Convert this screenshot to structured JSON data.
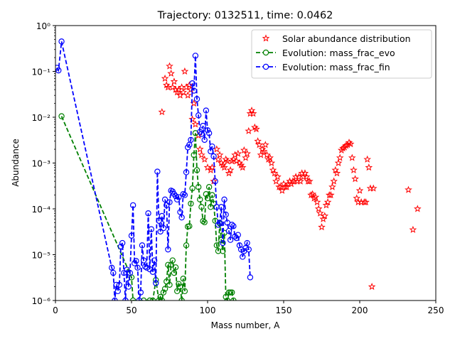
{
  "chart_data": {
    "type": "scatter",
    "title": "Trajectory: 0132511, time: 0.0462",
    "xlabel": "Mass number, A",
    "ylabel": "Abundance",
    "xlim": [
      0,
      250
    ],
    "ylim": [
      1e-06,
      1
    ],
    "yscale": "log",
    "grid": false,
    "legend": "top-right",
    "xticks": [
      0,
      50,
      100,
      150,
      200,
      250
    ],
    "xtick_labels": [
      "0",
      "50",
      "100",
      "150",
      "200",
      "250"
    ],
    "yticks": [
      1e-06,
      1e-05,
      0.0001,
      0.001,
      0.01,
      0.1,
      1
    ],
    "ytick_labels": [
      "10⁻⁶",
      "10⁻⁵",
      "10⁻⁴",
      "10⁻³",
      "10⁻²",
      "10⁻¹",
      "10⁰"
    ],
    "series": [
      {
        "name": "Solar abundance distribution",
        "color": "#ff0000",
        "marker": "star",
        "line": "none",
        "points": [
          [
            70,
            0.013
          ],
          [
            72,
            0.07
          ],
          [
            73,
            0.05
          ],
          [
            74,
            0.045
          ],
          [
            75,
            0.13
          ],
          [
            76,
            0.09
          ],
          [
            77,
            0.045
          ],
          [
            78,
            0.06
          ],
          [
            79,
            0.04
          ],
          [
            80,
            0.035
          ],
          [
            81,
            0.04
          ],
          [
            82,
            0.03
          ],
          [
            83,
            0.045
          ],
          [
            84,
            0.035
          ],
          [
            85,
            0.1
          ],
          [
            86,
            0.045
          ],
          [
            87,
            0.03
          ],
          [
            88,
            0.05
          ],
          [
            89,
            0.04
          ],
          [
            90,
            0.009
          ],
          [
            91,
            0.02
          ],
          [
            92,
            0.007
          ],
          [
            94,
            0.004
          ],
          [
            95,
            0.002
          ],
          [
            96,
            0.0015
          ],
          [
            98,
            0.0012
          ],
          [
            100,
            0.0008
          ],
          [
            102,
            0.0007
          ],
          [
            103,
            0.0008
          ],
          [
            104,
            0.0004
          ],
          [
            106,
            0.002
          ],
          [
            107,
            0.0012
          ],
          [
            108,
            0.0015
          ],
          [
            109,
            0.001
          ],
          [
            110,
            0.0009
          ],
          [
            111,
            0.0008
          ],
          [
            112,
            0.0012
          ],
          [
            113,
            0.0011
          ],
          [
            114,
            0.0006
          ],
          [
            115,
            0.0007
          ],
          [
            116,
            0.0011
          ],
          [
            117,
            0.0012
          ],
          [
            118,
            0.0015
          ],
          [
            119,
            0.0011
          ],
          [
            120,
            0.0016
          ],
          [
            121,
            0.001
          ],
          [
            122,
            0.0009
          ],
          [
            123,
            0.0008
          ],
          [
            124,
            0.0019
          ],
          [
            125,
            0.0013
          ],
          [
            126,
            0.0016
          ],
          [
            127,
            0.005
          ],
          [
            128,
            0.012
          ],
          [
            129,
            0.014
          ],
          [
            130,
            0.012
          ],
          [
            131,
            0.006
          ],
          [
            132,
            0.0055
          ],
          [
            133,
            0.003
          ],
          [
            134,
            0.0025
          ],
          [
            135,
            0.0015
          ],
          [
            136,
            0.002
          ],
          [
            137,
            0.0018
          ],
          [
            138,
            0.0025
          ],
          [
            139,
            0.0015
          ],
          [
            140,
            0.0012
          ],
          [
            141,
            0.0013
          ],
          [
            142,
            0.001
          ],
          [
            143,
            0.0007
          ],
          [
            144,
            0.0006
          ],
          [
            145,
            0.0004
          ],
          [
            146,
            0.0005
          ],
          [
            147,
            0.0003
          ],
          [
            148,
            0.0003
          ],
          [
            149,
            0.00025
          ],
          [
            150,
            0.00035
          ],
          [
            151,
            0.0003
          ],
          [
            152,
            0.0003
          ],
          [
            153,
            0.00035
          ],
          [
            154,
            0.0004
          ],
          [
            155,
            0.00035
          ],
          [
            156,
            0.0004
          ],
          [
            157,
            0.0004
          ],
          [
            158,
            0.0005
          ],
          [
            159,
            0.0004
          ],
          [
            160,
            0.0005
          ],
          [
            161,
            0.0004
          ],
          [
            162,
            0.0006
          ],
          [
            163,
            0.0005
          ],
          [
            164,
            0.0006
          ],
          [
            165,
            0.0005
          ],
          [
            166,
            0.0004
          ],
          [
            167,
            0.0004
          ],
          [
            168,
            0.0002
          ],
          [
            169,
            0.00021
          ],
          [
            170,
            0.00017
          ],
          [
            171,
            0.00018
          ],
          [
            172,
            0.00014
          ],
          [
            173,
            0.0001
          ],
          [
            174,
            8e-05
          ],
          [
            175,
            4e-05
          ],
          [
            176,
            6e-05
          ],
          [
            177,
            7e-05
          ],
          [
            178,
            0.00012
          ],
          [
            179,
            0.00014
          ],
          [
            180,
            0.0002
          ],
          [
            181,
            0.0002
          ],
          [
            182,
            0.0003
          ],
          [
            183,
            0.0004
          ],
          [
            184,
            0.0007
          ],
          [
            185,
            0.0006
          ],
          [
            186,
            0.001
          ],
          [
            187,
            0.0013
          ],
          [
            188,
            0.0019
          ],
          [
            189,
            0.0021
          ],
          [
            190,
            0.0022
          ],
          [
            191,
            0.0024
          ],
          [
            192,
            0.0025
          ],
          [
            193,
            0.0028
          ],
          [
            194,
            0.0026
          ],
          [
            195,
            0.0013
          ],
          [
            196,
            0.0007
          ],
          [
            197,
            0.00045
          ],
          [
            198,
            0.00017
          ],
          [
            199,
            0.00014
          ],
          [
            200,
            0.00025
          ],
          [
            201,
            0.00014
          ],
          [
            203,
            0.00014
          ],
          [
            204,
            0.00014
          ],
          [
            205,
            0.0012
          ],
          [
            206,
            0.0008
          ],
          [
            207,
            0.00028
          ],
          [
            208,
            2e-06
          ],
          [
            209,
            0.00028
          ],
          [
            232,
            0.00026
          ],
          [
            235,
            3.5e-05
          ],
          [
            238,
            0.0001
          ]
        ]
      },
      {
        "name": "Evolution: mass_frac_evo",
        "color": "#008000",
        "marker": "open-circle",
        "line": "dashed",
        "points": [
          [
            4,
            0.0105
          ],
          [
            50,
            3.2e-06
          ],
          [
            51,
            1e-06
          ],
          [
            58,
            1e-06
          ],
          [
            62,
            1e-06
          ],
          [
            64,
            1e-06
          ],
          [
            66,
            2.8e-06
          ],
          [
            68,
            1e-06
          ],
          [
            69,
            1.2e-06
          ],
          [
            70,
            1e-06
          ],
          [
            71,
            1.5e-06
          ],
          [
            72,
            1.8e-06
          ],
          [
            73,
            2.6e-06
          ],
          [
            74,
            6e-06
          ],
          [
            75,
            2.2e-06
          ],
          [
            76,
            6e-06
          ],
          [
            77,
            7.5e-06
          ],
          [
            78,
            4e-06
          ],
          [
            79,
            5.3e-06
          ],
          [
            80,
            1.6e-06
          ],
          [
            81,
            2.3e-06
          ],
          [
            82,
            2e-06
          ],
          [
            83,
            1e-06
          ],
          [
            84,
            3e-06
          ],
          [
            85,
            1.6e-06
          ],
          [
            86,
            1.6e-05
          ],
          [
            87,
            4.1e-05
          ],
          [
            88,
            4.2e-05
          ],
          [
            89,
            0.00013
          ],
          [
            90,
            0.00028
          ],
          [
            91,
            0.0015
          ],
          [
            92,
            0.0045
          ],
          [
            93,
            0.0007
          ],
          [
            94,
            0.0003
          ],
          [
            95,
            0.00016
          ],
          [
            96,
            0.00011
          ],
          [
            97,
            5.4e-05
          ],
          [
            98,
            5.1e-05
          ],
          [
            99,
            0.00021
          ],
          [
            100,
            0.00017
          ],
          [
            101,
            0.0003
          ],
          [
            102,
            0.00011
          ],
          [
            103,
            0.0002
          ],
          [
            104,
            0.00013
          ],
          [
            105,
            5.5e-05
          ],
          [
            106,
            1.6e-05
          ],
          [
            107,
            1.2e-05
          ],
          [
            108,
            4.8e-05
          ],
          [
            109,
            2.1e-05
          ],
          [
            110,
            1.2e-05
          ],
          [
            111,
            3e-05
          ],
          [
            112,
            1.2e-06
          ],
          [
            113,
            1e-06
          ],
          [
            114,
            1.5e-06
          ],
          [
            115,
            1.5e-06
          ],
          [
            116,
            1.5e-06
          ],
          [
            117,
            1e-06
          ]
        ]
      },
      {
        "name": "Evolution: mass_frac_fin",
        "color": "#0000ff",
        "marker": "open-circle",
        "line": "dashed",
        "points": [
          [
            1,
            0.12
          ],
          [
            2,
            0.105
          ],
          [
            4,
            0.45
          ],
          [
            37,
            5.2e-06
          ],
          [
            38,
            4e-06
          ],
          [
            39,
            1e-06
          ],
          [
            40,
            2.2e-06
          ],
          [
            41,
            1.6e-06
          ],
          [
            42,
            2.2e-06
          ],
          [
            43,
            1.5e-05
          ],
          [
            44,
            1.8e-05
          ],
          [
            45,
            4e-06
          ],
          [
            46,
            1e-06
          ],
          [
            47,
            4.7e-06
          ],
          [
            48,
            2e-06
          ],
          [
            49,
            4e-06
          ],
          [
            50,
            2.6e-05
          ],
          [
            51,
            0.00012
          ],
          [
            52,
            6.5e-06
          ],
          [
            53,
            7.3e-06
          ],
          [
            54,
            5.2e-06
          ],
          [
            55,
            1e-06
          ],
          [
            56,
            1.5e-06
          ],
          [
            57,
            1.6e-05
          ],
          [
            58,
            7.5e-06
          ],
          [
            59,
            5.5e-06
          ],
          [
            60,
            5.2e-06
          ],
          [
            61,
            8e-05
          ],
          [
            62,
            4.8e-06
          ],
          [
            63,
            3.6e-05
          ],
          [
            64,
            4.2e-06
          ],
          [
            65,
            7.5e-06
          ],
          [
            66,
            2.4e-06
          ],
          [
            67,
            0.00065
          ],
          [
            68,
            5.5e-05
          ],
          [
            69,
            3.2e-05
          ],
          [
            70,
            7e-05
          ],
          [
            71,
            3.8e-05
          ],
          [
            72,
            0.00016
          ],
          [
            73,
            0.00012
          ],
          [
            74,
            1.3e-05
          ],
          [
            75,
            0.00014
          ],
          [
            76,
            0.00025
          ],
          [
            77,
            0.00024
          ],
          [
            78,
            0.00021
          ],
          [
            79,
            0.00019
          ],
          [
            80,
            0.00016
          ],
          [
            81,
            0.00018
          ],
          [
            82,
            8.5e-05
          ],
          [
            83,
            6.5e-05
          ],
          [
            84,
            0.00021
          ],
          [
            85,
            0.0002
          ],
          [
            86,
            0.00063
          ],
          [
            87,
            0.0022
          ],
          [
            88,
            0.0025
          ],
          [
            89,
            0.0032
          ],
          [
            90,
            0.055
          ],
          [
            91,
            0.038
          ],
          [
            92,
            0.22
          ],
          [
            93,
            0.025
          ],
          [
            94,
            0.011
          ],
          [
            95,
            0.0048
          ],
          [
            96,
            0.0043
          ],
          [
            97,
            0.0065
          ],
          [
            98,
            0.0032
          ],
          [
            99,
            0.014
          ],
          [
            100,
            0.0052
          ],
          [
            101,
            0.0045
          ],
          [
            102,
            0.0018
          ],
          [
            103,
            0.0023
          ],
          [
            104,
            0.0014
          ],
          [
            105,
            0.0004
          ],
          [
            106,
            0.00011
          ],
          [
            107,
            4.5e-05
          ],
          [
            108,
            5e-05
          ],
          [
            109,
            0.00011
          ],
          [
            110,
            1.8e-05
          ],
          [
            111,
            0.00016
          ],
          [
            112,
            7.5e-05
          ],
          [
            113,
            5e-05
          ],
          [
            114,
            3.3e-05
          ],
          [
            115,
            2.1e-05
          ],
          [
            116,
            4.5e-05
          ],
          [
            117,
            4.2e-05
          ],
          [
            118,
            2.5e-05
          ],
          [
            119,
            2.3e-05
          ],
          [
            120,
            2.7e-05
          ],
          [
            121,
            1.6e-05
          ],
          [
            122,
            1.3e-05
          ],
          [
            123,
            9e-06
          ],
          [
            124,
            1.2e-05
          ],
          [
            125,
            1.4e-05
          ],
          [
            126,
            1.8e-05
          ],
          [
            127,
            1.3e-05
          ],
          [
            128,
            3.2e-06
          ]
        ]
      }
    ]
  }
}
